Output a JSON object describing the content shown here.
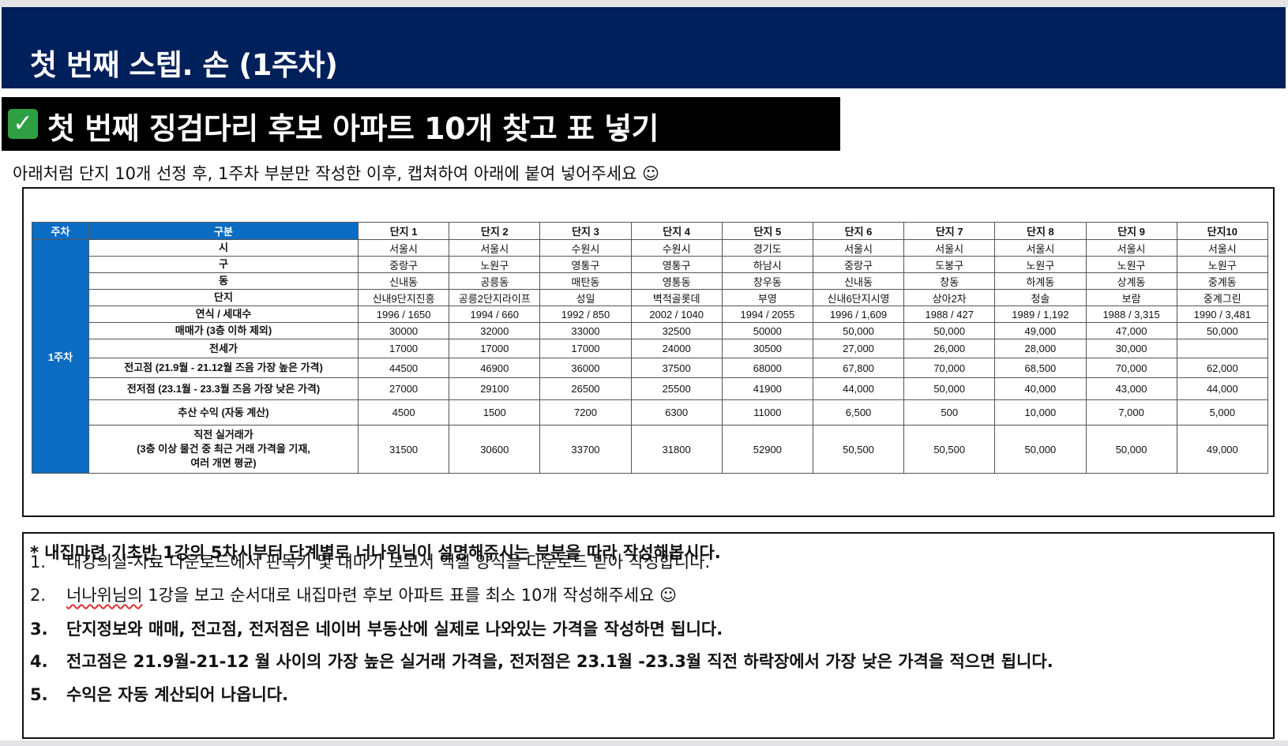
{
  "header": {
    "title": "첫 번째 스텝. 손 (1주차)"
  },
  "subheader": {
    "check": "✓",
    "title": "첫 번째 징검다리 후보 아파트 10개 찾고 표 넣기"
  },
  "intro": "아래처럼 단지 10개 선정 후, 1주차 부분만 작성한 이후, 캡쳐하여 아래에 붙여 넣어주세요 ☺",
  "table": {
    "head_week": "주차",
    "head_category": "구분",
    "columns": [
      "단지 1",
      "단지 2",
      "단지 3",
      "단지 4",
      "단지 5",
      "단지 6",
      "단지 7",
      "단지 8",
      "단지 9",
      "단지10"
    ],
    "week_label": "1주차",
    "rows": [
      {
        "label": "시",
        "cells": [
          "서울시",
          "서울시",
          "수원시",
          "수원시",
          "경기도",
          "서울시",
          "서울시",
          "서울시",
          "서울시",
          "서울시"
        ]
      },
      {
        "label": "구",
        "cells": [
          "중랑구",
          "노원구",
          "영통구",
          "영통구",
          "하남시",
          "중랑구",
          "도봉구",
          "노원구",
          "노원구",
          "노원구"
        ]
      },
      {
        "label": "동",
        "cells": [
          "신내동",
          "공릉동",
          "매탄동",
          "영통동",
          "창우동",
          "신내동",
          "창동",
          "하계동",
          "상계동",
          "중계동"
        ]
      },
      {
        "label": "단지",
        "cells": [
          "신내9단지진흥",
          "공릉2단지라이프",
          "성일",
          "벽적골롯데",
          "부영",
          "신내6단지시영",
          "상아2차",
          "청솔",
          "보람",
          "중계그린"
        ]
      },
      {
        "label": "연식 / 세대수",
        "cells": [
          "1996 / 1650",
          "1994 / 660",
          "1992 / 850",
          "2002 / 1040",
          "1994 / 2055",
          "1996 / 1,609",
          "1988 / 427",
          "1989 / 1,192",
          "1988 / 3,315",
          "1990 / 3,481"
        ]
      },
      {
        "label": "매매가 (3층 이하 제외)",
        "cells": [
          "30000",
          "32000",
          "33000",
          "32500",
          "50000",
          "50,000",
          "50,000",
          "49,000",
          "47,000",
          "50,000"
        ]
      },
      {
        "label": "전세가",
        "cells": [
          "17000",
          "17000",
          "17000",
          "24000",
          "30500",
          "27,000",
          "26,000",
          "28,000",
          "30,000",
          ""
        ]
      },
      {
        "label": "전고점 (21.9월 - 21.12월 즈음 가장 높은 가격)",
        "cells": [
          "44500",
          "46900",
          "36000",
          "37500",
          "68000",
          "67,800",
          "70,000",
          "68,500",
          "70,000",
          "62,000"
        ]
      },
      {
        "label": "전저점 (23.1월 - 23.3월 즈음 가장 낮은 가격)",
        "cells": [
          "27000",
          "29100",
          "26500",
          "25500",
          "41900",
          "44,000",
          "50,000",
          "40,000",
          "43,000",
          "44,000"
        ]
      },
      {
        "label": "추산 수익 (자동 계산)",
        "cells": [
          "4500",
          "1500",
          "7200",
          "6300",
          "11000",
          "6,500",
          "500",
          "10,000",
          "7,000",
          "5,000"
        ]
      },
      {
        "label": "직전 실거래가\n(3층 이상 물건 중 최근 거래 가격을 기재,\n여러 개면 평균)",
        "cells": [
          "31500",
          "30600",
          "33700",
          "31800",
          "52900",
          "50,500",
          "50,500",
          "50,000",
          "50,000",
          "49,000"
        ]
      }
    ]
  },
  "notes": {
    "heading": "* 내집마련 기초반 1강의 5차시부터 단계별로 너나위님이 설명해주시는 부분을 따라 작성해봅시다.",
    "items": [
      {
        "num": "1.",
        "text": "내강의실-자료 다운로드에서 판독기 및 내마기 보고서 엑셀 양식을 다운로드 받아 작성합니다."
      },
      {
        "num": "2.",
        "text_a": "너나위님의",
        "text_b": " 1강을 보고 순서대로 내집마련 후보 아파트 표를 최소 10개  작성해주세요 ☺"
      },
      {
        "num": "3.",
        "text": "단지정보와 매매,  전고점, 전저점은 네이버 부동산에 실제로 나와있는 가격을 작성하면 됩니다."
      },
      {
        "num": "4.",
        "text": "전고점은 21.9월-21-12 월 사이의 가장 높은 실거래 가격을, 전저점은 23.1월 -23.3월 직전 하락장에서 가장 낮은 가격을 적으면 됩니다."
      },
      {
        "num": "5.",
        "text": "수익은 자동 계산되어 나옵니다."
      }
    ]
  }
}
